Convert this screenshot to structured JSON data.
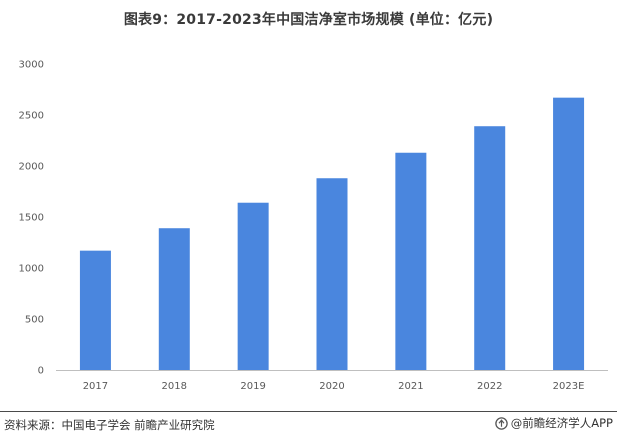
{
  "title": "图表9：2017-2023年中国洁净室市场规模 (单位：亿元)",
  "source": "资料来源：中国电子学会 前瞻产业研究院",
  "brand": "@前瞻经济学人APP",
  "colors": {
    "bar": "#4a86de",
    "axis": "#bfbfbf",
    "text": "#595959",
    "title": "#3a3a3a"
  },
  "chart_data": {
    "type": "bar",
    "title": "图表9：2017-2023年中国洁净室市场规模 (单位：亿元)",
    "xlabel": "",
    "ylabel": "",
    "categories": [
      "2017",
      "2018",
      "2019",
      "2020",
      "2021",
      "2022",
      "2023E"
    ],
    "values": [
      1170,
      1390,
      1640,
      1880,
      2130,
      2390,
      2670
    ],
    "ylim": [
      0,
      3000
    ],
    "yticks": [
      0,
      500,
      1000,
      1500,
      2000,
      2500,
      3000
    ],
    "grid": false,
    "legend": "none"
  }
}
